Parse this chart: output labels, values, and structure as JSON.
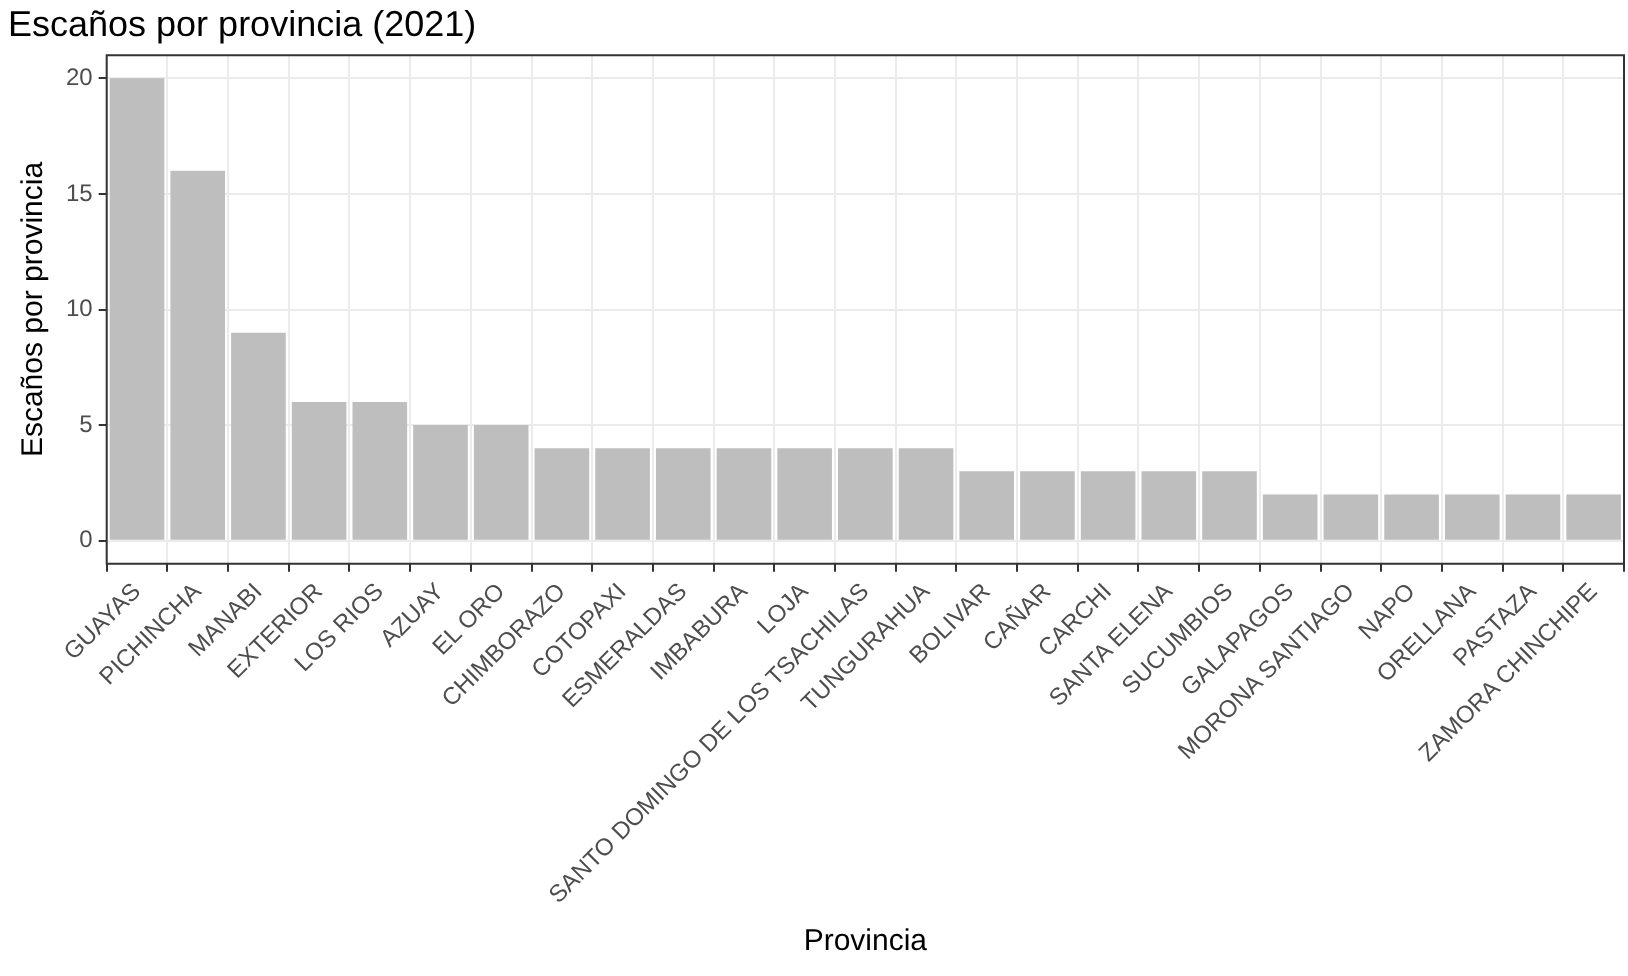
{
  "chart_data": {
    "type": "bar",
    "title": "Escaños por provincia (2021)",
    "xlabel": "Provincia",
    "ylabel": "Escaños por provincia",
    "categories": [
      "GUAYAS",
      "PICHINCHA",
      "MANABI",
      "EXTERIOR",
      "LOS RIOS",
      "AZUAY",
      "EL ORO",
      "CHIMBORAZO",
      "COTOPAXI",
      "ESMERALDAS",
      "IMBABURA",
      "LOJA",
      "SANTO DOMINGO DE LOS TSACHILAS",
      "TUNGURAHUA",
      "BOLIVAR",
      "CAÑAR",
      "CARCHI",
      "SANTA ELENA",
      "SUCUMBIOS",
      "GALAPAGOS",
      "MORONA SANTIAGO",
      "NAPO",
      "ORELLANA",
      "PASTAZA",
      "ZAMORA CHINCHIPE"
    ],
    "values": [
      20,
      16,
      9,
      6,
      6,
      5,
      5,
      4,
      4,
      4,
      4,
      4,
      4,
      4,
      3,
      3,
      3,
      3,
      3,
      2,
      2,
      2,
      2,
      2,
      2
    ],
    "color": "#bebebe",
    "ylim": [
      -1,
      21
    ],
    "yticks": [
      0,
      5,
      10,
      15,
      20
    ],
    "grid": true
  }
}
